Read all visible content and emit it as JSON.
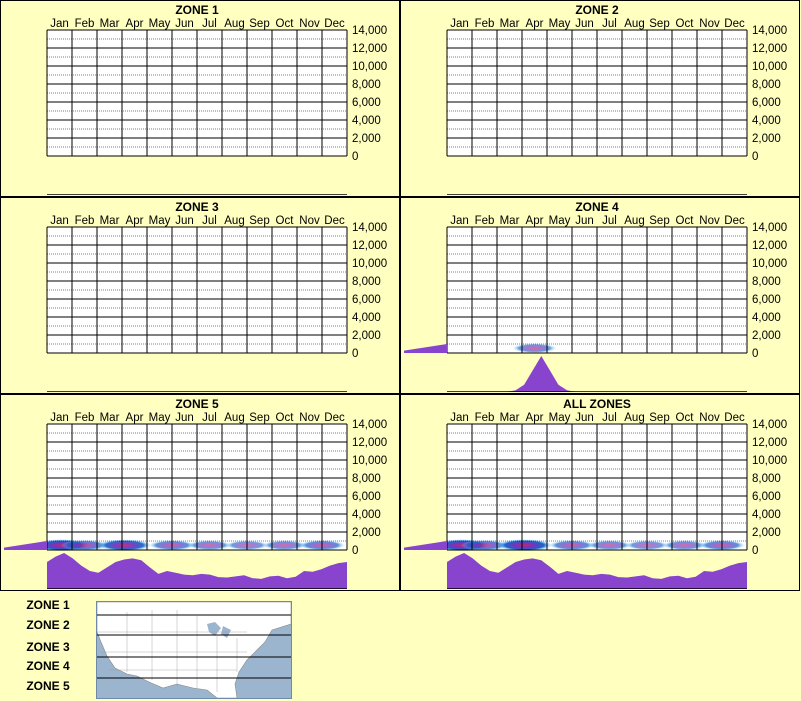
{
  "months": [
    "Jan",
    "Feb",
    "Mar",
    "Apr",
    "May",
    "Jun",
    "Jul",
    "Aug",
    "Sep",
    "Oct",
    "Nov",
    "Dec"
  ],
  "y_ticks": [
    "14,000",
    "12,000",
    "10,000",
    "8,000",
    "6,000",
    "4,000",
    "2,000",
    "0"
  ],
  "colors": {
    "background": "#ffffc0",
    "plot": "#ffffff",
    "grid": "#000000",
    "density": "#8844cc",
    "heat_low": "#1a66cc",
    "heat_high": "#cc2266"
  },
  "chart_data": [
    {
      "type": "heatmap",
      "title": "ZONE 1",
      "ylim": [
        0,
        14000
      ],
      "x_density": [],
      "y_density": [],
      "hotspots": []
    },
    {
      "type": "heatmap",
      "title": "ZONE 2",
      "ylim": [
        0,
        14000
      ],
      "x_density": [],
      "y_density": [],
      "hotspots": []
    },
    {
      "type": "heatmap",
      "title": "ZONE 3",
      "ylim": [
        0,
        14000
      ],
      "x_density": [],
      "y_density": [],
      "hotspots": []
    },
    {
      "type": "heatmap",
      "title": "ZONE 4",
      "ylim": [
        0,
        14000
      ],
      "x_density": [
        0,
        0,
        0,
        0,
        0,
        0,
        0,
        0,
        0.05,
        0.2,
        0.6,
        1.0,
        0.6,
        0.2,
        0.05,
        0,
        0,
        0,
        0,
        0,
        0,
        0,
        0,
        0,
        0,
        0,
        0,
        0,
        0,
        0,
        0,
        0,
        0,
        0,
        0,
        0
      ],
      "y_density": [
        1.0,
        0.02,
        0,
        0,
        0,
        0,
        0,
        0,
        0,
        0,
        0,
        0,
        0,
        0,
        0,
        0
      ],
      "hotspots": [
        {
          "month": 4.0,
          "elev": 200,
          "intensity": 0.4
        }
      ]
    },
    {
      "type": "heatmap",
      "title": "ZONE 5",
      "ylim": [
        0,
        14000
      ],
      "x_density": [
        0.75,
        0.9,
        1.0,
        0.85,
        0.65,
        0.5,
        0.45,
        0.6,
        0.75,
        0.82,
        0.85,
        0.8,
        0.6,
        0.42,
        0.5,
        0.45,
        0.4,
        0.38,
        0.42,
        0.4,
        0.33,
        0.32,
        0.35,
        0.38,
        0.3,
        0.28,
        0.35,
        0.37,
        0.3,
        0.34,
        0.5,
        0.48,
        0.55,
        0.65,
        0.72,
        0.75
      ],
      "y_density": [
        1.0,
        0.15,
        0.02,
        0,
        0,
        0,
        0,
        0,
        0,
        0,
        0,
        0,
        0,
        0,
        0,
        0
      ],
      "hotspots": [
        {
          "month": 1.1,
          "elev": 200,
          "intensity": 1.0
        },
        {
          "month": 2.0,
          "elev": 200,
          "intensity": 0.6
        },
        {
          "month": 3.6,
          "elev": 200,
          "intensity": 0.9
        },
        {
          "month": 5.5,
          "elev": 200,
          "intensity": 0.5
        },
        {
          "month": 7.0,
          "elev": 200,
          "intensity": 0.4
        },
        {
          "month": 8.5,
          "elev": 200,
          "intensity": 0.35
        },
        {
          "month": 10.0,
          "elev": 200,
          "intensity": 0.4
        },
        {
          "month": 11.5,
          "elev": 200,
          "intensity": 0.5
        }
      ]
    },
    {
      "type": "heatmap",
      "title": "ALL ZONES",
      "ylim": [
        0,
        14000
      ],
      "x_density": [
        0.75,
        0.9,
        1.0,
        0.85,
        0.65,
        0.5,
        0.45,
        0.6,
        0.75,
        0.82,
        0.85,
        0.8,
        0.62,
        0.42,
        0.5,
        0.45,
        0.4,
        0.38,
        0.42,
        0.4,
        0.33,
        0.32,
        0.35,
        0.38,
        0.3,
        0.28,
        0.35,
        0.37,
        0.3,
        0.34,
        0.5,
        0.48,
        0.55,
        0.65,
        0.72,
        0.75
      ],
      "y_density": [
        1.0,
        0.15,
        0.02,
        0,
        0,
        0,
        0,
        0,
        0,
        0,
        0,
        0,
        0,
        0,
        0,
        0
      ],
      "hotspots": [
        {
          "month": 1.1,
          "elev": 200,
          "intensity": 1.0
        },
        {
          "month": 2.0,
          "elev": 200,
          "intensity": 0.6
        },
        {
          "month": 3.6,
          "elev": 200,
          "intensity": 1.0
        },
        {
          "month": 5.5,
          "elev": 200,
          "intensity": 0.5
        },
        {
          "month": 7.0,
          "elev": 200,
          "intensity": 0.4
        },
        {
          "month": 8.5,
          "elev": 200,
          "intensity": 0.35
        },
        {
          "month": 10.0,
          "elev": 200,
          "intensity": 0.4
        },
        {
          "month": 11.5,
          "elev": 200,
          "intensity": 0.5
        }
      ]
    }
  ],
  "legend": {
    "zones": [
      "ZONE 1",
      "ZONE 2",
      "ZONE 3",
      "ZONE 4",
      "ZONE 5"
    ]
  }
}
